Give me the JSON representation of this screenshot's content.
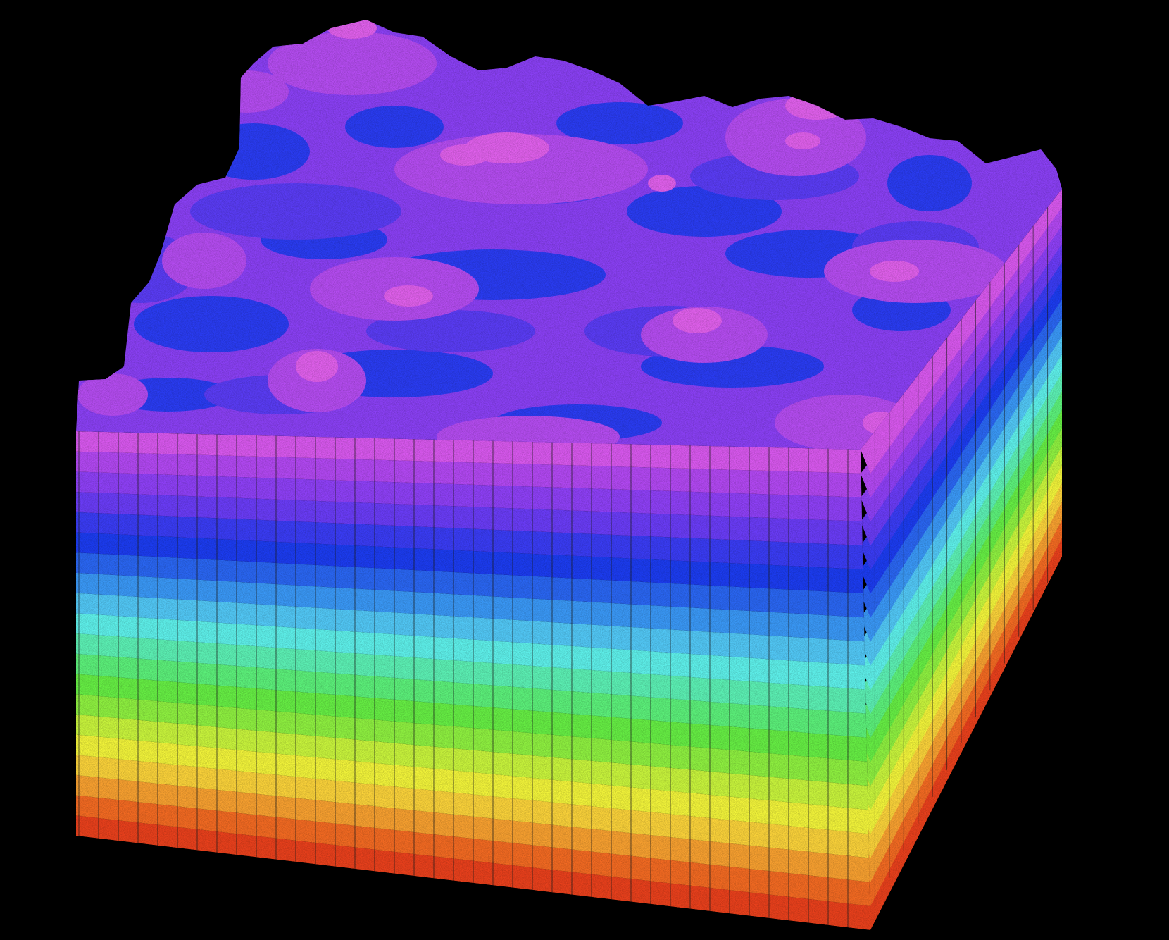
{
  "scene": {
    "background_color": "#000000",
    "object": "voxel-terrain-block",
    "colormap": "rainbow",
    "band_colors_bottom_to_top": [
      "#e8401c",
      "#f26a22",
      "#f7a030",
      "#fad23a",
      "#f2f43a",
      "#c8f43c",
      "#8ef040",
      "#66ee44",
      "#5cf07a",
      "#5cf0b4",
      "#5ef0ea",
      "#52c8f6",
      "#3a98f6",
      "#2a66f2",
      "#1c3cf0",
      "#3a3cf4",
      "#6a3cf6",
      "#8e40f6",
      "#b248f2",
      "#d858ee"
    ],
    "top_surface_colors": {
      "valley": "#2a3cf2",
      "low": "#5a3cf4",
      "mid": "#8a40f4",
      "high": "#b44cf0",
      "peak": "#e060ec"
    },
    "column_line_color": "#1a1a1a"
  }
}
